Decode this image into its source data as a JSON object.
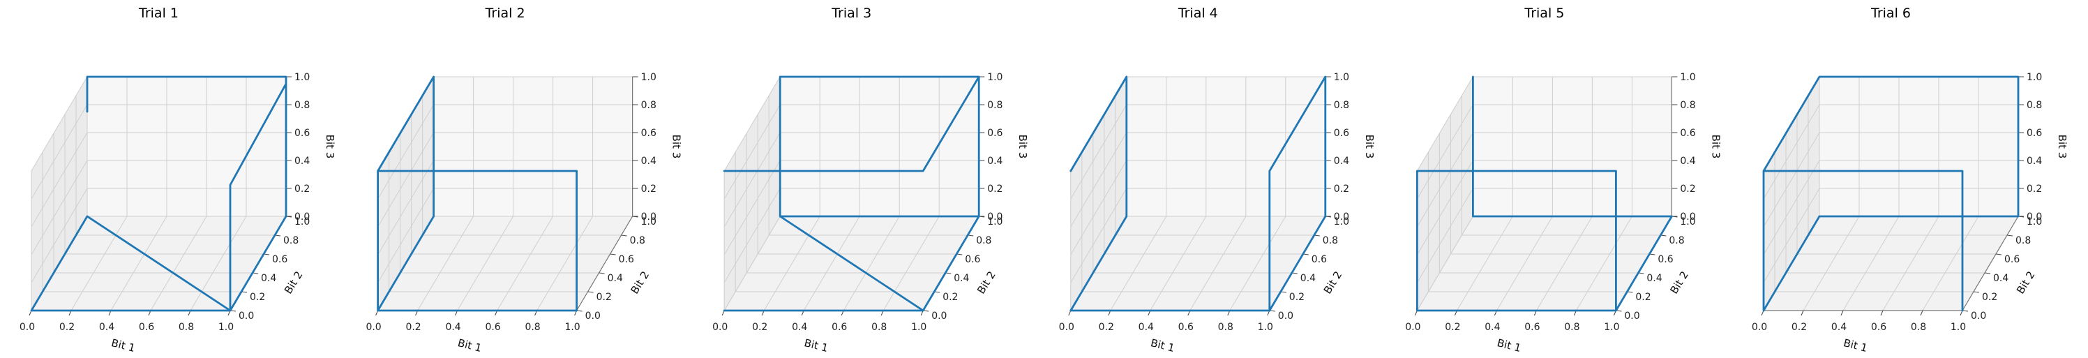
{
  "chart_data": [
    {
      "type": "line",
      "projection": "3d",
      "title": "Trial 1",
      "xlabel": "Bit 1",
      "ylabel": "Bit 2",
      "zlabel": "Bit 3",
      "xlim": [
        0,
        1
      ],
      "ylim": [
        0,
        1
      ],
      "zlim": [
        0,
        1
      ],
      "xticks": [
        "0.0",
        "0.2",
        "0.4",
        "0.6",
        "0.8",
        "1.0"
      ],
      "yticks": [
        "0.0",
        "0.2",
        "0.4",
        "0.6",
        "0.8",
        "1.0"
      ],
      "zticks": [
        "0.0",
        "0.2",
        "0.4",
        "0.6",
        "0.8",
        "1.0"
      ],
      "grid": true,
      "color": "#1f77b4",
      "points": [
        [
          0,
          1,
          0.75
        ],
        [
          0,
          1,
          1
        ],
        [
          1,
          1,
          1
        ],
        [
          1,
          1,
          0
        ],
        [
          1,
          0,
          0
        ],
        [
          0,
          0,
          0
        ],
        [
          0,
          1,
          0
        ],
        [
          1,
          0,
          0
        ],
        [
          1,
          0,
          0.9
        ],
        [
          1,
          1,
          0.95
        ]
      ]
    },
    {
      "type": "line",
      "projection": "3d",
      "title": "Trial 2",
      "xlabel": "Bit 1",
      "ylabel": "Bit 2",
      "zlabel": "Bit 3",
      "xlim": [
        0,
        1
      ],
      "ylim": [
        0,
        1
      ],
      "zlim": [
        0,
        1
      ],
      "xticks": [
        "0.0",
        "0.2",
        "0.4",
        "0.6",
        "0.8",
        "1.0"
      ],
      "yticks": [
        "0.0",
        "0.2",
        "0.4",
        "0.6",
        "0.8",
        "1.0"
      ],
      "zticks": [
        "0.0",
        "0.2",
        "0.4",
        "0.6",
        "0.8",
        "1.0"
      ],
      "grid": true,
      "color": "#1f77b4",
      "points": [
        [
          0,
          1,
          1
        ],
        [
          0,
          0,
          1
        ],
        [
          0,
          0,
          0
        ],
        [
          1,
          0,
          0
        ],
        [
          1,
          0,
          1
        ],
        [
          0,
          0,
          1
        ],
        [
          0,
          1,
          1
        ],
        [
          0,
          1,
          0
        ],
        [
          0,
          0,
          0
        ]
      ]
    },
    {
      "type": "line",
      "projection": "3d",
      "title": "Trial 3",
      "xlabel": "Bit 1",
      "ylabel": "Bit 2",
      "zlabel": "Bit 3",
      "xlim": [
        0,
        1
      ],
      "ylim": [
        0,
        1
      ],
      "zlim": [
        0,
        1
      ],
      "xticks": [
        "0.0",
        "0.2",
        "0.4",
        "0.6",
        "0.8",
        "1.0"
      ],
      "yticks": [
        "0.0",
        "0.2",
        "0.4",
        "0.6",
        "0.8",
        "1.0"
      ],
      "zticks": [
        "0.0",
        "0.2",
        "0.4",
        "0.6",
        "0.8",
        "1.0"
      ],
      "grid": true,
      "color": "#1f77b4",
      "points": [
        [
          0,
          0,
          1
        ],
        [
          1,
          0,
          1
        ],
        [
          1,
          1,
          1
        ],
        [
          0,
          1,
          1
        ],
        [
          0,
          1,
          0
        ],
        [
          1,
          0,
          0
        ],
        [
          0,
          0,
          0
        ],
        [
          1,
          0,
          0
        ],
        [
          1,
          1,
          0
        ],
        [
          1,
          1,
          1
        ],
        [
          1,
          1,
          0
        ],
        [
          0,
          1,
          0
        ]
      ]
    },
    {
      "type": "line",
      "projection": "3d",
      "title": "Trial 4",
      "xlabel": "Bit 1",
      "ylabel": "Bit 2",
      "zlabel": "Bit 3",
      "xlim": [
        0,
        1
      ],
      "ylim": [
        0,
        1
      ],
      "zlim": [
        0,
        1
      ],
      "xticks": [
        "0.0",
        "0.2",
        "0.4",
        "0.6",
        "0.8",
        "1.0"
      ],
      "yticks": [
        "0.0",
        "0.2",
        "0.4",
        "0.6",
        "0.8",
        "1.0"
      ],
      "zticks": [
        "0.0",
        "0.2",
        "0.4",
        "0.6",
        "0.8",
        "1.0"
      ],
      "grid": true,
      "color": "#1f77b4",
      "points": [
        [
          0,
          0,
          1
        ],
        [
          0,
          1,
          1
        ],
        [
          0,
          1,
          0
        ],
        [
          0,
          0,
          0
        ],
        [
          1,
          0,
          0
        ],
        [
          1,
          1,
          0
        ],
        [
          1,
          1,
          1
        ],
        [
          1,
          0,
          1
        ],
        [
          1,
          0,
          0
        ]
      ]
    },
    {
      "type": "line",
      "projection": "3d",
      "title": "Trial 5",
      "xlabel": "Bit 1",
      "ylabel": "Bit 2",
      "zlabel": "Bit 3",
      "xlim": [
        0,
        1
      ],
      "ylim": [
        0,
        1
      ],
      "zlim": [
        0,
        1
      ],
      "xticks": [
        "0.0",
        "0.2",
        "0.4",
        "0.6",
        "0.8",
        "1.0"
      ],
      "yticks": [
        "0.0",
        "0.2",
        "0.4",
        "0.6",
        "0.8",
        "1.0"
      ],
      "zticks": [
        "0.0",
        "0.2",
        "0.4",
        "0.6",
        "0.8",
        "1.0"
      ],
      "grid": true,
      "color": "#1f77b4",
      "points": [
        [
          0,
          1,
          1
        ],
        [
          0,
          1,
          0
        ],
        [
          1,
          1,
          0
        ],
        [
          1,
          0,
          0
        ],
        [
          0,
          0,
          0
        ],
        [
          0,
          0,
          1
        ],
        [
          1,
          0,
          1
        ],
        [
          1,
          0,
          0
        ]
      ]
    },
    {
      "type": "line",
      "projection": "3d",
      "title": "Trial 6",
      "xlabel": "Bit 1",
      "ylabel": "Bit 2",
      "zlabel": "Bit 3",
      "xlim": [
        0,
        1
      ],
      "ylim": [
        0,
        1
      ],
      "zlim": [
        0,
        1
      ],
      "xticks": [
        "0.0",
        "0.2",
        "0.4",
        "0.6",
        "0.8",
        "1.0"
      ],
      "yticks": [
        "0.0",
        "0.2",
        "0.4",
        "0.6",
        "0.8",
        "1.0"
      ],
      "zticks": [
        "0.0",
        "0.2",
        "0.4",
        "0.6",
        "0.8",
        "1.0"
      ],
      "grid": true,
      "color": "#1f77b4",
      "points": [
        [
          0,
          0,
          1
        ],
        [
          0,
          1,
          1
        ],
        [
          1,
          1,
          1
        ],
        [
          1,
          1,
          0
        ],
        [
          0,
          1,
          0
        ],
        [
          0,
          0,
          0
        ],
        [
          0,
          0,
          1
        ],
        [
          1,
          0,
          1
        ],
        [
          1,
          0,
          0
        ]
      ]
    }
  ]
}
